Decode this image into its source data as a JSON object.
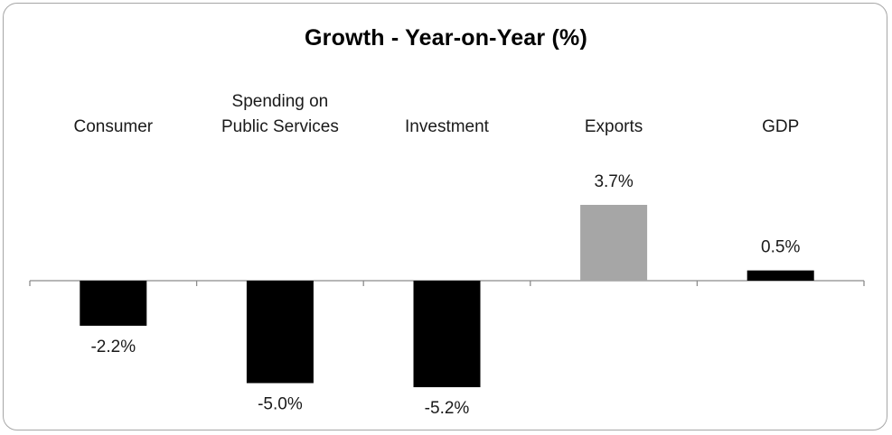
{
  "chart_data": {
    "type": "bar",
    "title": "Growth - Year-on-Year (%)",
    "categories": [
      [
        "Consumer"
      ],
      [
        "Spending on",
        "Public Services"
      ],
      [
        "Investment"
      ],
      [
        "Exports"
      ],
      [
        "GDP"
      ]
    ],
    "values": [
      -2.2,
      -5.0,
      -5.2,
      3.7,
      0.5
    ],
    "data_labels": [
      "-2.2%",
      "-5.0%",
      "-5.2%",
      "3.7%",
      "0.5%"
    ],
    "bar_colors": [
      "#000000",
      "#000000",
      "#000000",
      "#a6a6a6",
      "#000000"
    ],
    "ylim": [
      -6.0,
      6.0
    ],
    "category_labels_position": "top",
    "grid": false,
    "legend": "none",
    "xlabel": "",
    "ylabel": ""
  }
}
